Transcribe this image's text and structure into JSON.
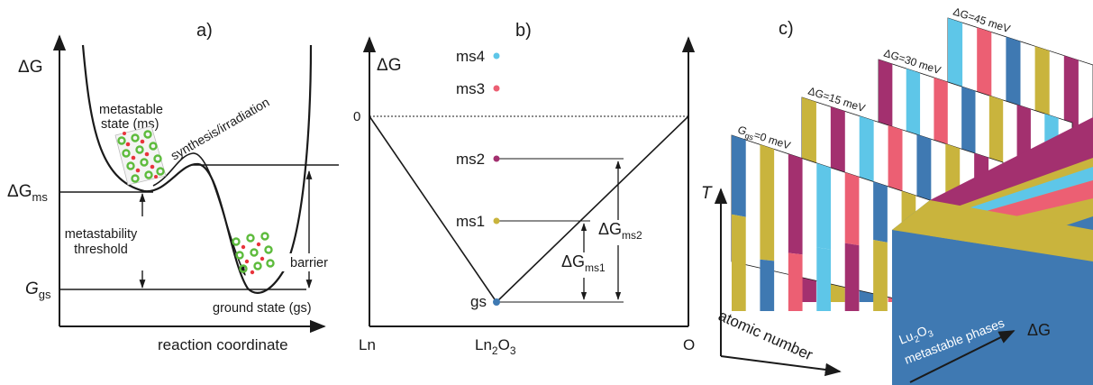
{
  "colors": {
    "ink": "#1a1a1a",
    "blue": "#3f79b2",
    "cyan": "#5ec6e8",
    "magenta": "#a3306f",
    "pink": "#ec5f73",
    "mustard": "#c9b43d",
    "ground_dot": "#3f79b2",
    "atom_green": "#5dbb3c",
    "atom_red": "#e8343c"
  },
  "panel_a": {
    "label": "a)",
    "y_symbol": "ΔG",
    "dG_ms_main": "ΔG",
    "dG_ms_sub": "ms",
    "G_gs_main": "G",
    "G_gs_sub": "gs",
    "metastable_line1": "metastable",
    "metastable_line2": "state (ms)",
    "threshold_line1": "metastability",
    "threshold_line2": "threshold",
    "synthesis": "synthesis/irradiation",
    "barrier": "barrier",
    "ground_state": "ground state (gs)",
    "x_label": "reaction coordinate"
  },
  "panel_b": {
    "label": "b)",
    "y_symbol": "ΔG",
    "zero": "0",
    "levels": [
      {
        "name": "ms4",
        "color_key": "cyan"
      },
      {
        "name": "ms3",
        "color_key": "pink"
      },
      {
        "name": "ms2",
        "color_key": "magenta"
      },
      {
        "name": "ms1",
        "color_key": "mustard"
      },
      {
        "name": "gs",
        "color_key": "blue"
      }
    ],
    "dG_ms1_main": "ΔG",
    "dG_ms1_sub": "ms1",
    "dG_ms2_main": "ΔG",
    "dG_ms2_sub": "ms2",
    "x_left": "Ln",
    "x_mid_main": "Ln",
    "x_mid_sub1": "2",
    "x_mid_o": "O",
    "x_mid_sub2": "3",
    "x_right": "O"
  },
  "panel_c": {
    "label": "c)",
    "t_axis": "T",
    "x_axis": "atomic number",
    "dg_axis": "ΔG",
    "slices": [
      {
        "label": "G",
        "sub": "gs",
        "rest": "=0 meV"
      },
      {
        "label": "ΔG",
        "sub": "",
        "rest": "=15 meV"
      },
      {
        "label": "ΔG",
        "sub": "",
        "rest": "=30 meV"
      },
      {
        "label": "ΔG",
        "sub": "",
        "rest": "=45 meV"
      }
    ],
    "front_line1_main": "Lu",
    "front_line1_sub1": "2",
    "front_line1_o": "O",
    "front_line1_sub2": "3",
    "front_line2": "metastable phases"
  }
}
